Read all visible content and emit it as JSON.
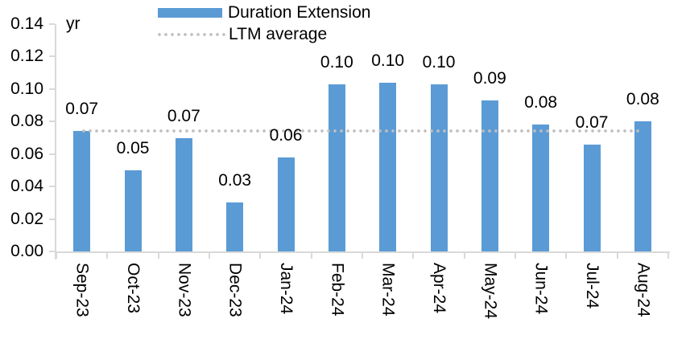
{
  "chart_data": {
    "type": "bar",
    "title": "",
    "unit_label": "yr",
    "categories": [
      "Sep-23",
      "Oct-23",
      "Nov-23",
      "Dec-23",
      "Jan-24",
      "Feb-24",
      "Mar-24",
      "Apr-24",
      "May-24",
      "Jun-24",
      "Jul-24",
      "Aug-24"
    ],
    "series": [
      {
        "name": "Duration Extension",
        "color": "#5B9BD5",
        "values": [
          0.074,
          0.05,
          0.07,
          0.03,
          0.058,
          0.103,
          0.104,
          0.103,
          0.093,
          0.078,
          0.066,
          0.08
        ],
        "data_labels": [
          "0.07",
          "0.05",
          "0.07",
          "0.03",
          "0.06",
          "0.10",
          "0.10",
          "0.10",
          "0.09",
          "0.08",
          "0.07",
          "0.08"
        ]
      }
    ],
    "reference_line": {
      "name": "LTM average",
      "value": 0.074,
      "color": "#BFBFBF",
      "style": "dotted"
    },
    "xlabel": "",
    "ylabel": "yr",
    "ylim": [
      0,
      0.14
    ],
    "ytick_step": 0.02,
    "ytick_labels": [
      "0.00",
      "0.02",
      "0.04",
      "0.06",
      "0.08",
      "0.10",
      "0.12",
      "0.14"
    ],
    "legend_position": "top",
    "grid": false,
    "axis_color": "#D9D9D9",
    "text_color": "#000000",
    "background_color": "#FFFFFF"
  }
}
